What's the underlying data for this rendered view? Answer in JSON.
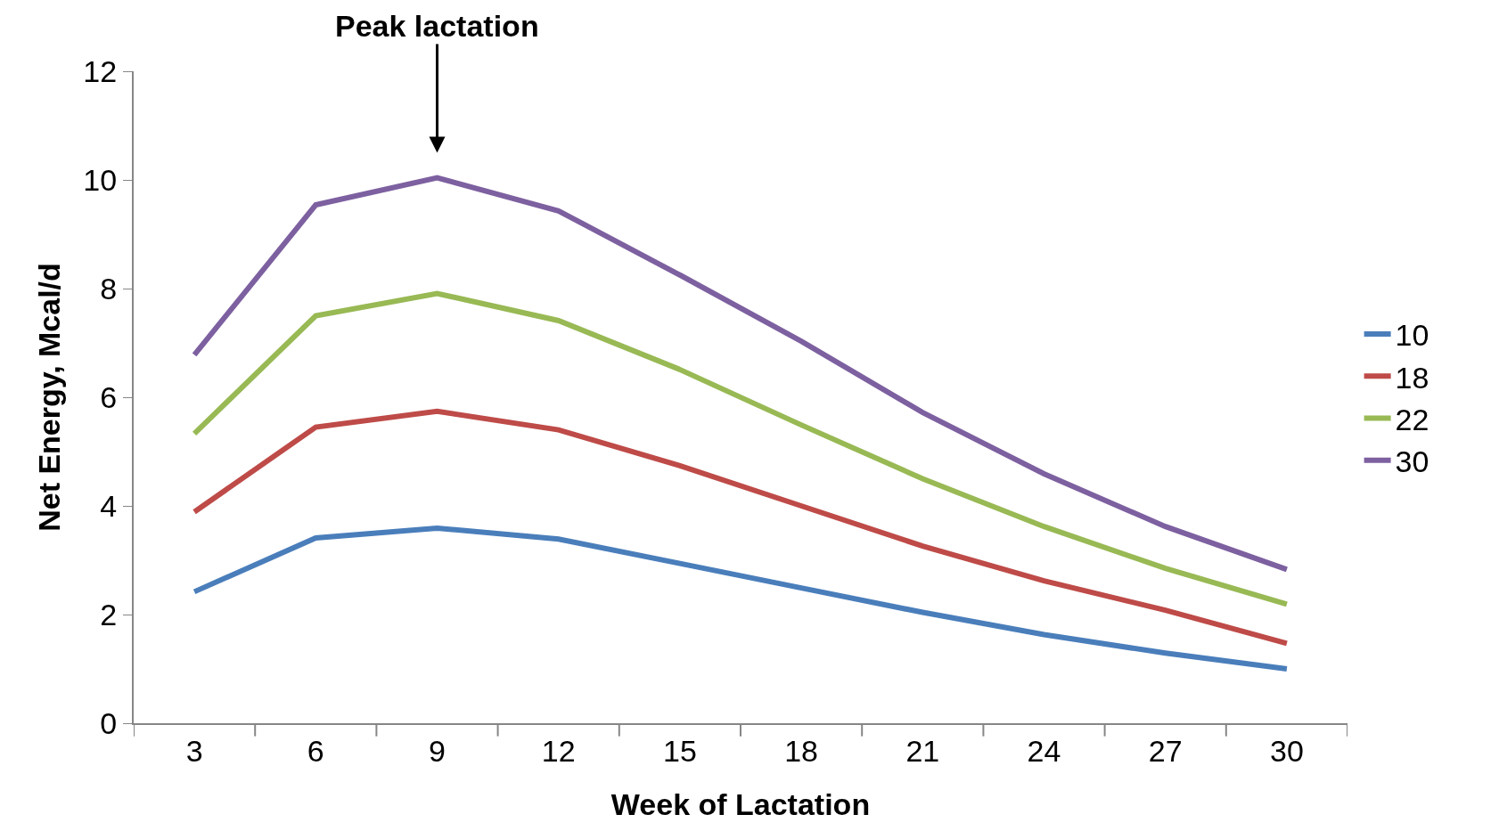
{
  "chart_data": {
    "type": "line",
    "xlabel": "Week of Lactation",
    "ylabel": "Net Energy, Mcal/d",
    "categories": [
      "3",
      "6",
      "9",
      "12",
      "15",
      "18",
      "21",
      "24",
      "27",
      "30"
    ],
    "series": [
      {
        "name": "10",
        "color": "#4a7ebb",
        "values": [
          2.42,
          3.41,
          3.59,
          3.39,
          2.94,
          2.49,
          2.04,
          1.63,
          1.29,
          1.0
        ]
      },
      {
        "name": "18",
        "color": "#be4b48",
        "values": [
          3.89,
          5.45,
          5.74,
          5.4,
          4.74,
          4.0,
          3.26,
          2.62,
          2.08,
          1.47
        ]
      },
      {
        "name": "22",
        "color": "#98b954",
        "values": [
          5.33,
          7.5,
          7.91,
          7.41,
          6.51,
          5.49,
          4.5,
          3.62,
          2.85,
          2.19
        ]
      },
      {
        "name": "30",
        "color": "#7d60a0",
        "values": [
          6.78,
          9.54,
          10.04,
          9.43,
          8.25,
          7.03,
          5.72,
          4.59,
          3.62,
          2.83
        ]
      }
    ],
    "annotations": [
      {
        "text": "Peak lactation",
        "x": "9",
        "y": 10.04
      }
    ],
    "ylim": [
      0,
      12
    ],
    "yticks": [
      0,
      2,
      4,
      6,
      8,
      10,
      12
    ],
    "legend": "right",
    "marker": "none",
    "line_style": "solid"
  }
}
